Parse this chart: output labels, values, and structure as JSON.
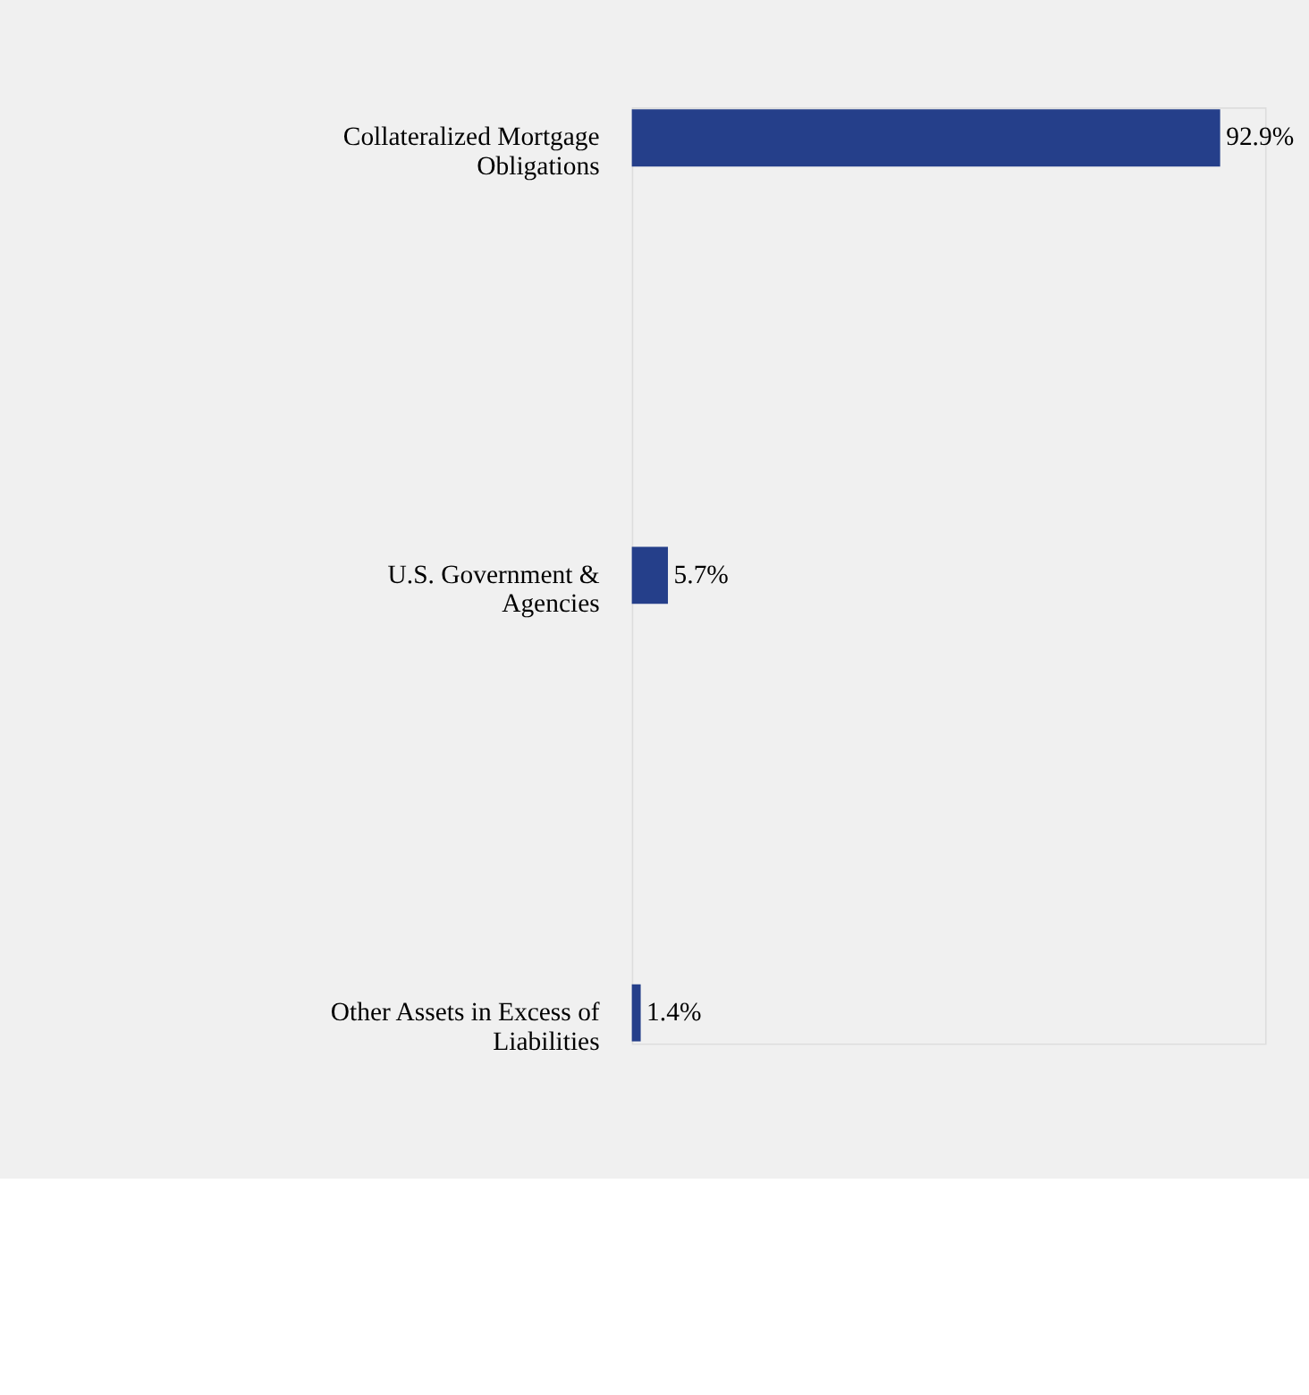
{
  "chart_data": {
    "type": "bar",
    "orientation": "horizontal",
    "categories": [
      "Collateralized Mortgage Obligations",
      "U.S. Government & Agencies",
      "Other Assets in Excess of Liabilities"
    ],
    "values": [
      92.9,
      5.7,
      1.4
    ],
    "value_labels": [
      "92.9%",
      "5.7%",
      "1.4%"
    ],
    "color": "#253f8a",
    "grid": false
  }
}
